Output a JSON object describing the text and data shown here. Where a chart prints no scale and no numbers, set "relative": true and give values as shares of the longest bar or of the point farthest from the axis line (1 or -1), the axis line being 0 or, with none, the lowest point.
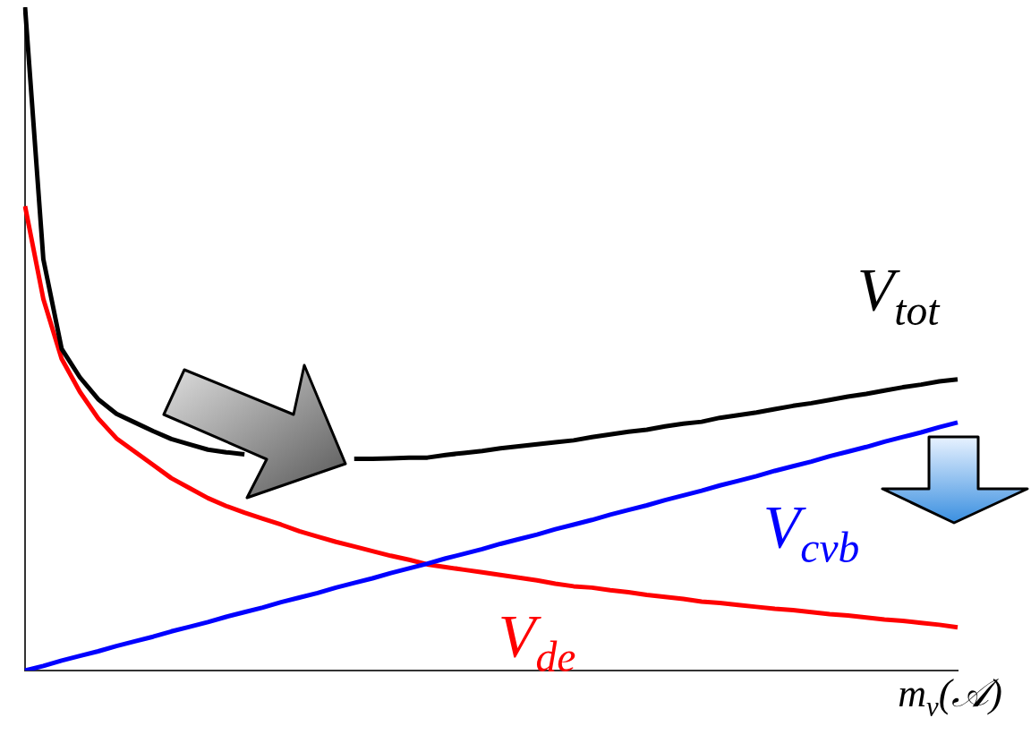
{
  "chart_data": {
    "type": "line",
    "relative": true,
    "xlabel": "m$_{ν}$(𝒜)",
    "legend": false,
    "grid": false,
    "categories": [
      null,
      null,
      null,
      null,
      null,
      null,
      null,
      null,
      null,
      null,
      null,
      null,
      null,
      null,
      null,
      null,
      null,
      null,
      null,
      null,
      null,
      null,
      null,
      null,
      null,
      null,
      null,
      null,
      null,
      null,
      null,
      null,
      null,
      null,
      null,
      null,
      null,
      null,
      null,
      null,
      null,
      null,
      null,
      null,
      null,
      null,
      null,
      null,
      null,
      null,
      null,
      null
    ],
    "series": [
      {
        "name": "V$_{tot}$",
        "color": "#000000",
        "values": [
          1.0,
          0.62,
          0.485,
          0.442,
          0.409,
          0.387,
          0.374,
          0.361,
          0.349,
          0.341,
          0.333,
          0.329,
          0.326,
          null,
          null,
          null,
          null,
          null,
          0.319,
          0.319,
          0.32,
          0.321,
          0.321,
          0.325,
          0.328,
          0.331,
          0.335,
          0.338,
          0.341,
          0.344,
          0.347,
          0.352,
          0.356,
          0.36,
          0.363,
          0.368,
          0.372,
          0.375,
          0.381,
          0.385,
          0.389,
          0.394,
          0.399,
          0.403,
          0.408,
          0.413,
          0.417,
          0.422,
          0.427,
          0.431,
          0.436,
          0.439
        ]
      },
      {
        "name": "V$_{cνb}$",
        "color": "#0000ff",
        "values": [
          0,
          0.007,
          0.015,
          0.022,
          0.029,
          0.037,
          0.044,
          0.051,
          0.059,
          0.066,
          0.073,
          0.081,
          0.088,
          0.095,
          0.103,
          0.11,
          0.117,
          0.125,
          0.132,
          0.139,
          0.147,
          0.154,
          0.161,
          0.169,
          0.176,
          0.183,
          0.191,
          0.198,
          0.205,
          0.213,
          0.22,
          0.227,
          0.235,
          0.242,
          0.249,
          0.257,
          0.264,
          0.271,
          0.279,
          0.286,
          0.293,
          0.301,
          0.308,
          0.315,
          0.323,
          0.33,
          0.337,
          0.345,
          0.352,
          0.359,
          0.367,
          0.374
        ]
      },
      {
        "name": "V$_{de}$",
        "color": "#ff0000",
        "values": [
          0.7,
          0.56,
          0.47,
          0.42,
          0.38,
          0.35,
          0.33,
          0.31,
          0.29,
          0.275,
          0.26,
          0.248,
          0.238,
          0.229,
          0.22,
          0.21,
          0.202,
          0.194,
          0.187,
          0.18,
          0.173,
          0.167,
          0.16,
          0.156,
          0.152,
          0.148,
          0.144,
          0.14,
          0.136,
          0.131,
          0.127,
          0.125,
          0.121,
          0.118,
          0.114,
          0.111,
          0.108,
          0.104,
          0.102,
          0.099,
          0.096,
          0.093,
          0.091,
          0.088,
          0.085,
          0.083,
          0.08,
          0.077,
          0.075,
          0.072,
          0.069,
          0.065
        ]
      }
    ]
  }
}
